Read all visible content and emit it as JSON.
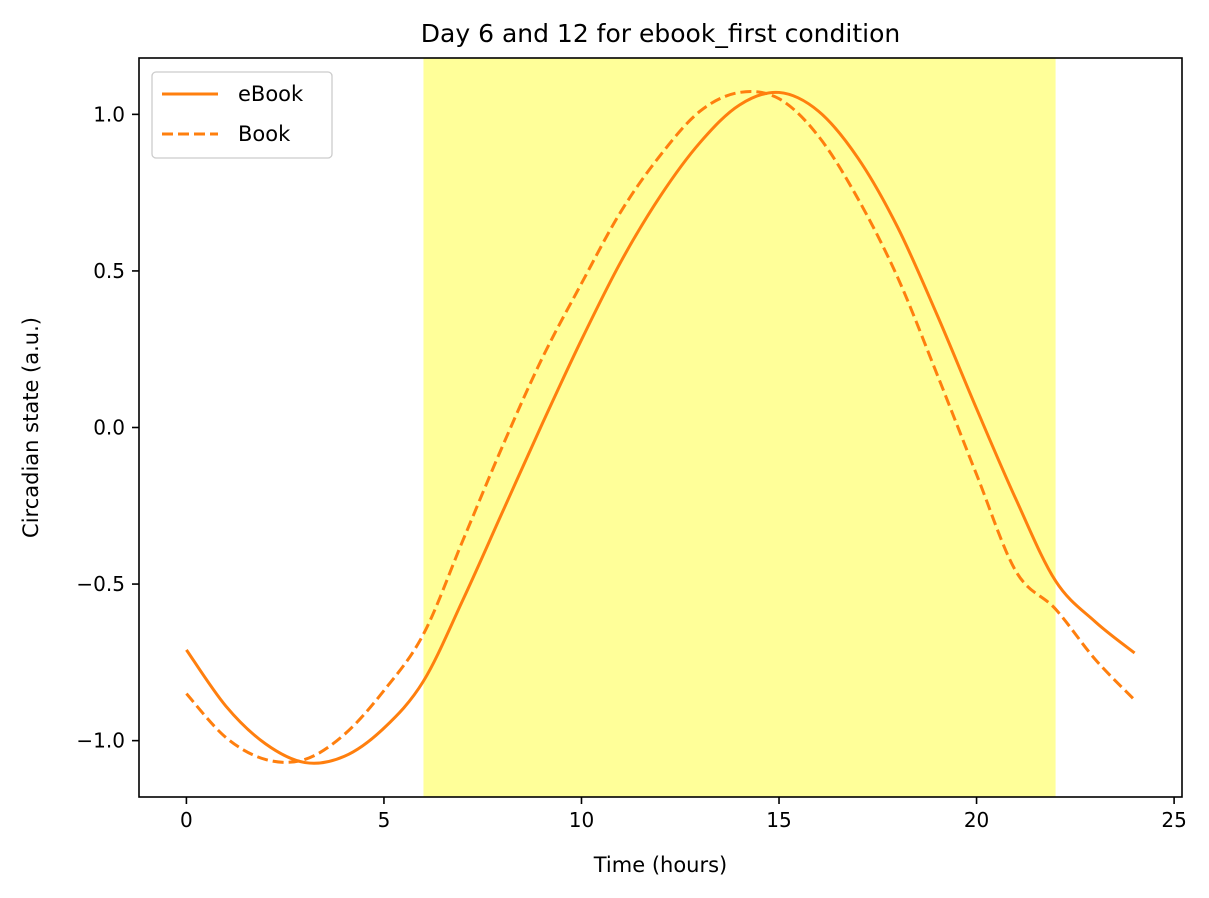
{
  "chart_data": {
    "type": "line",
    "title": "Day 6 and 12 for ebook_first condition",
    "xlabel": "Time (hours)",
    "ylabel": "Circadian state (a.u.)",
    "xlim": [
      -1.2,
      25.2
    ],
    "ylim": [
      -1.18,
      1.18
    ],
    "xticks": [
      0,
      5,
      10,
      15,
      20,
      25
    ],
    "xtick_labels": [
      "0",
      "5",
      "10",
      "15",
      "20",
      "25"
    ],
    "yticks": [
      -1.0,
      -0.5,
      0.0,
      0.5,
      1.0
    ],
    "ytick_labels": [
      "−1.0",
      "−0.5",
      "0.0",
      "0.5",
      "1.0"
    ],
    "grid": false,
    "legend_position": "top-left",
    "shaded_region": {
      "x_start": 6,
      "x_end": 22,
      "color": "#ffff99"
    },
    "series": [
      {
        "name": "eBook",
        "color": "#ff7f0e",
        "linestyle": "solid",
        "x": [
          0,
          1,
          2,
          3,
          4,
          5,
          6,
          7,
          8,
          9,
          10,
          11,
          12,
          13,
          14,
          15,
          16,
          17,
          18,
          19,
          20,
          21,
          22,
          23,
          24
        ],
        "y": [
          -0.71,
          -0.89,
          -1.01,
          -1.07,
          -1.05,
          -0.96,
          -0.81,
          -0.55,
          -0.27,
          0.01,
          0.28,
          0.53,
          0.74,
          0.91,
          1.03,
          1.07,
          1.01,
          0.86,
          0.64,
          0.36,
          0.06,
          -0.23,
          -0.49,
          -0.62,
          -0.72
        ]
      },
      {
        "name": "Book",
        "color": "#ff7f0e",
        "linestyle": "dashed",
        "x": [
          0,
          1,
          2,
          3,
          4,
          5,
          6,
          7,
          8,
          9,
          10,
          11,
          12,
          13,
          14,
          15,
          16,
          17,
          18,
          19,
          20,
          21,
          22,
          23,
          24
        ],
        "y": [
          -0.85,
          -0.99,
          -1.06,
          -1.06,
          -0.98,
          -0.84,
          -0.66,
          -0.36,
          -0.06,
          0.22,
          0.46,
          0.69,
          0.87,
          1.01,
          1.07,
          1.05,
          0.93,
          0.73,
          0.48,
          0.17,
          -0.15,
          -0.46,
          -0.58,
          -0.74,
          -0.87
        ]
      }
    ]
  }
}
